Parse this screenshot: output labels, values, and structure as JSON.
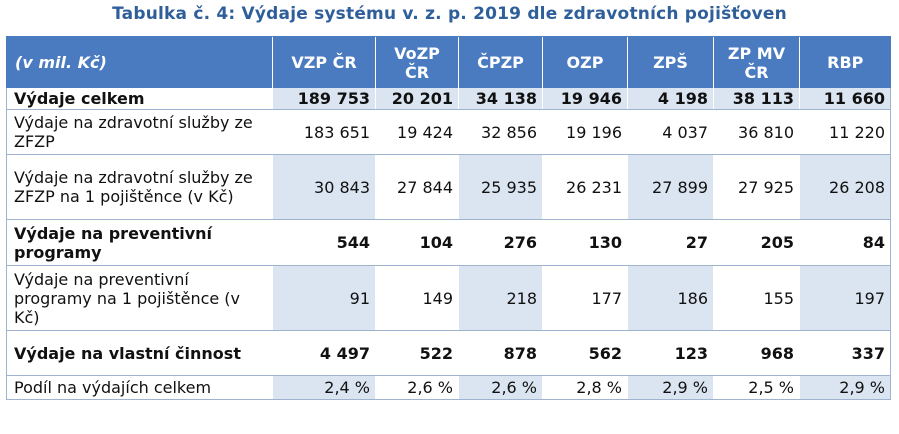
{
  "title": "Tabulka č. 4: Výdaje systému v. z. p. 2019 dle zdravotních pojišťoven",
  "header": {
    "unit": "(v mil. Kč)",
    "columns": [
      "VZP ČR",
      "VoZP ČR",
      "ČPZP",
      "OZP",
      "ZPŠ",
      "ZP MV ČR",
      "RBP"
    ]
  },
  "rows": [
    {
      "label": "Výdaje celkem",
      "values": [
        "189 753",
        "20 201",
        "34 138",
        "19 946",
        "4 198",
        "38 113",
        "11 660"
      ]
    },
    {
      "label": "Výdaje na zdravotní služby ze ZFZP",
      "values": [
        "183 651",
        "19 424",
        "32 856",
        "19 196",
        "4 037",
        "36 810",
        "11 220"
      ]
    },
    {
      "label": "Výdaje na zdravotní služby ze ZFZP na 1 pojištěnce (v Kč)",
      "values": [
        "30 843",
        "27 844",
        "25 935",
        "26 231",
        "27 899",
        "27 925",
        "26 208"
      ]
    },
    {
      "label": "Výdaje na preventivní programy",
      "values": [
        "544",
        "104",
        "276",
        "130",
        "27",
        "205",
        "84"
      ]
    },
    {
      "label": "Výdaje na preventivní programy na 1 pojištěnce (v Kč)",
      "values": [
        "91",
        "149",
        "218",
        "177",
        "186",
        "155",
        "197"
      ]
    },
    {
      "label": "Výdaje na vlastní činnost",
      "values": [
        "4 497",
        "522",
        "878",
        "562",
        "123",
        "968",
        "337"
      ]
    },
    {
      "label": "Podíl na výdajích celkem",
      "values": [
        "2,4 %",
        "2,6 %",
        "2,6 %",
        "2,8 %",
        "2,9 %",
        "2,5 %",
        "2,9 %"
      ]
    }
  ],
  "colors": {
    "title": "#2f5f9b",
    "header_bg": "#4a7ac0",
    "shade": "#dbe5f1",
    "grid": "#9fb3cf"
  }
}
